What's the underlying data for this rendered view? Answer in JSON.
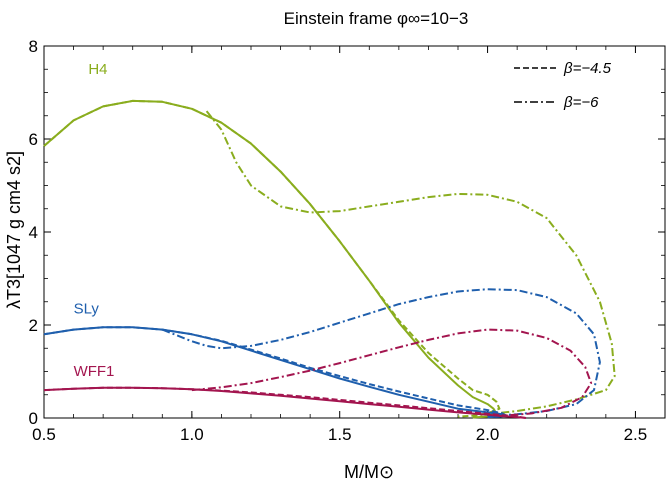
{
  "chart_data": {
    "type": "line",
    "title": "Einstein frame φ∞=10−3",
    "xlabel": "M/M⊙",
    "ylabel": "λT3[1047 g cm4 s2]",
    "xlim": [
      0.5,
      2.6
    ],
    "ylim": [
      0,
      8
    ],
    "x_ticks": [
      "0.5",
      "1.0",
      "1.5",
      "2.0",
      "2.5"
    ],
    "y_ticks": [
      "0",
      "2",
      "4",
      "6",
      "8"
    ],
    "grid": false,
    "legend_position": "top-right",
    "legend": [
      {
        "label": "β=−4.5",
        "style": "dashed"
      },
      {
        "label": "β=−6",
        "style": "dash-dot"
      }
    ],
    "colors": {
      "H4": "#8aad1e",
      "SLy": "#1f5fad",
      "WFF1": "#a3154f"
    },
    "series": [
      {
        "name": "H4",
        "style": "solid",
        "color": "#8aad1e",
        "x": [
          0.5,
          0.6,
          0.7,
          0.8,
          0.9,
          1.0,
          1.1,
          1.2,
          1.3,
          1.4,
          1.5,
          1.6,
          1.7,
          1.8,
          1.9,
          1.95,
          2.0,
          2.02,
          2.03,
          2.02,
          2.0,
          1.97,
          1.95
        ],
        "y": [
          5.85,
          6.4,
          6.7,
          6.82,
          6.8,
          6.65,
          6.35,
          5.9,
          5.3,
          4.6,
          3.8,
          2.95,
          2.05,
          1.3,
          0.7,
          0.45,
          0.3,
          0.2,
          0.1,
          0.05,
          0.03,
          0.02,
          0.01
        ]
      },
      {
        "name": "H4",
        "style": "dashed",
        "color": "#8aad1e",
        "x": [
          0.5,
          0.6,
          0.7,
          0.8,
          0.9,
          1.0,
          1.1,
          1.2,
          1.3,
          1.4,
          1.5,
          1.6,
          1.7,
          1.8,
          1.9,
          1.95,
          2.0,
          2.03,
          2.04,
          2.0,
          1.95,
          1.9
        ],
        "y": [
          5.85,
          6.4,
          6.7,
          6.82,
          6.8,
          6.65,
          6.35,
          5.9,
          5.3,
          4.6,
          3.8,
          2.95,
          2.1,
          1.4,
          0.85,
          0.6,
          0.5,
          0.35,
          0.2,
          0.1,
          0.05,
          0.03
        ]
      },
      {
        "name": "H4",
        "style": "dash-dot",
        "color": "#8aad1e",
        "x": [
          1.05,
          1.1,
          1.15,
          1.2,
          1.3,
          1.4,
          1.5,
          1.6,
          1.7,
          1.8,
          1.9,
          2.0,
          2.1,
          2.2,
          2.3,
          2.38,
          2.42,
          2.43,
          2.4,
          2.3,
          2.2,
          2.1,
          2.0,
          1.95
        ],
        "y": [
          6.6,
          6.2,
          5.5,
          5.0,
          4.55,
          4.42,
          4.45,
          4.55,
          4.65,
          4.75,
          4.82,
          4.8,
          4.65,
          4.3,
          3.5,
          2.5,
          1.6,
          0.9,
          0.6,
          0.4,
          0.25,
          0.15,
          0.08,
          0.05
        ]
      },
      {
        "name": "SLy",
        "style": "solid",
        "color": "#1f5fad",
        "x": [
          0.5,
          0.6,
          0.7,
          0.8,
          0.9,
          1.0,
          1.1,
          1.2,
          1.3,
          1.4,
          1.5,
          1.6,
          1.7,
          1.8,
          1.9,
          2.0,
          2.05,
          2.06,
          2.04,
          2.0
        ],
        "y": [
          1.8,
          1.9,
          1.95,
          1.95,
          1.9,
          1.8,
          1.65,
          1.45,
          1.25,
          1.05,
          0.85,
          0.67,
          0.5,
          0.35,
          0.2,
          0.12,
          0.08,
          0.05,
          0.03,
          0.02
        ]
      },
      {
        "name": "SLy",
        "style": "dashed",
        "color": "#1f5fad",
        "x": [
          0.5,
          0.6,
          0.7,
          0.8,
          0.9,
          1.0,
          1.1,
          1.2,
          1.3,
          1.4,
          1.5,
          1.6,
          1.7,
          1.8,
          1.9,
          2.0,
          2.05,
          2.06,
          2.04,
          2.0
        ],
        "y": [
          1.8,
          1.9,
          1.95,
          1.95,
          1.9,
          1.8,
          1.66,
          1.47,
          1.28,
          1.08,
          0.9,
          0.73,
          0.57,
          0.42,
          0.27,
          0.17,
          0.1,
          0.06,
          0.03,
          0.02
        ]
      },
      {
        "name": "SLy",
        "style": "dash-dot",
        "color": "#1f5fad",
        "x": [
          0.9,
          1.0,
          1.05,
          1.1,
          1.2,
          1.3,
          1.4,
          1.5,
          1.6,
          1.7,
          1.8,
          1.9,
          2.0,
          2.1,
          2.2,
          2.3,
          2.36,
          2.38,
          2.36,
          2.3,
          2.2,
          2.1,
          2.0
        ],
        "y": [
          1.9,
          1.65,
          1.55,
          1.5,
          1.55,
          1.68,
          1.85,
          2.05,
          2.25,
          2.45,
          2.6,
          2.72,
          2.77,
          2.75,
          2.6,
          2.25,
          1.8,
          1.2,
          0.6,
          0.3,
          0.15,
          0.08,
          0.04
        ]
      },
      {
        "name": "WFF1",
        "style": "solid",
        "color": "#a3154f",
        "x": [
          0.5,
          0.6,
          0.7,
          0.8,
          0.9,
          1.0,
          1.1,
          1.2,
          1.3,
          1.4,
          1.5,
          1.6,
          1.7,
          1.8,
          1.9,
          2.0,
          2.05,
          2.1,
          2.13
        ],
        "y": [
          0.6,
          0.63,
          0.65,
          0.65,
          0.64,
          0.62,
          0.58,
          0.53,
          0.48,
          0.42,
          0.36,
          0.3,
          0.24,
          0.18,
          0.12,
          0.07,
          0.04,
          0.02,
          0.0
        ]
      },
      {
        "name": "WFF1",
        "style": "dashed",
        "color": "#a3154f",
        "x": [
          0.5,
          0.6,
          0.7,
          0.8,
          0.9,
          1.0,
          1.1,
          1.2,
          1.3,
          1.4,
          1.5,
          1.6,
          1.7,
          1.8,
          1.9,
          2.0,
          2.05,
          2.1,
          2.13
        ],
        "y": [
          0.6,
          0.63,
          0.65,
          0.65,
          0.64,
          0.62,
          0.59,
          0.55,
          0.5,
          0.45,
          0.39,
          0.33,
          0.27,
          0.21,
          0.15,
          0.09,
          0.06,
          0.03,
          0.0
        ]
      },
      {
        "name": "WFF1",
        "style": "dash-dot",
        "color": "#a3154f",
        "x": [
          1.0,
          1.1,
          1.2,
          1.3,
          1.4,
          1.5,
          1.6,
          1.7,
          1.8,
          1.9,
          2.0,
          2.1,
          2.2,
          2.28,
          2.33,
          2.35,
          2.32,
          2.25,
          2.15,
          2.05
        ],
        "y": [
          0.6,
          0.66,
          0.75,
          0.88,
          1.02,
          1.18,
          1.35,
          1.52,
          1.68,
          1.82,
          1.9,
          1.88,
          1.72,
          1.45,
          1.1,
          0.75,
          0.45,
          0.22,
          0.1,
          0.05
        ]
      }
    ],
    "series_labels": [
      {
        "text": "H4",
        "color": "#8aad1e"
      },
      {
        "text": "SLy",
        "color": "#1f5fad"
      },
      {
        "text": "WFF1",
        "color": "#a3154f"
      }
    ]
  }
}
